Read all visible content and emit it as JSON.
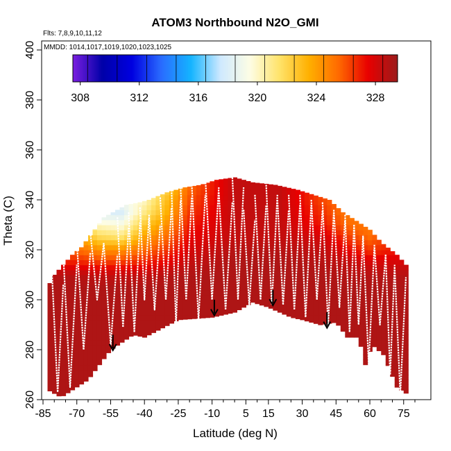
{
  "chart_data": {
    "type": "heatmap",
    "title": "ATOM3 Northbound N2O_GMI",
    "xlabel": "Latitude (deg N)",
    "ylabel": "Theta (C)",
    "xlim": [
      -85,
      80
    ],
    "ylim": [
      260,
      400
    ],
    "x_ticks": [
      -85,
      -70,
      -55,
      -40,
      -25,
      -10,
      5,
      15,
      30,
      45,
      60,
      75
    ],
    "y_ticks": [
      260,
      280,
      300,
      320,
      340,
      360,
      380,
      400
    ],
    "annotations": {
      "flights": "Flts: 7,8,9,10,11,12",
      "dates": "MMDD: 1014,1017,1019,1020,1023,1025"
    },
    "colorbar": {
      "min": 307.5,
      "max": 329.5,
      "tick_values": [
        308,
        312,
        316,
        320,
        324,
        328
      ],
      "tick_labels": [
        "308",
        "312",
        "316",
        "320",
        "324",
        "328"
      ],
      "colors": [
        "#7b1fe0",
        "#0000a8",
        "#0000e0",
        "#2a6cff",
        "#14b4ff",
        "#cfe9ff",
        "#fdfde4",
        "#ffe36a",
        "#ffb000",
        "#ff6a00",
        "#e80000",
        "#9b1c1c"
      ]
    },
    "field": {
      "lower_boundary": [
        [
          -83,
          264
        ],
        [
          -77,
          261
        ],
        [
          -65,
          268
        ],
        [
          -55,
          280
        ],
        [
          -45,
          286
        ],
        [
          -40,
          285
        ],
        [
          -25,
          292
        ],
        [
          -10,
          293
        ],
        [
          0,
          295
        ],
        [
          8,
          299
        ],
        [
          15,
          297
        ],
        [
          25,
          293
        ],
        [
          30,
          292
        ],
        [
          38,
          290
        ],
        [
          45,
          291
        ],
        [
          50,
          285
        ],
        [
          55,
          285
        ],
        [
          58,
          274
        ],
        [
          61,
          282
        ],
        [
          66,
          278
        ],
        [
          72,
          265
        ],
        [
          77,
          262
        ]
      ],
      "upper_boundary": [
        [
          -83,
          305
        ],
        [
          -80,
          310
        ],
        [
          -72,
          318
        ],
        [
          -68,
          321
        ],
        [
          -63,
          327
        ],
        [
          -58,
          333
        ],
        [
          -52,
          336
        ],
        [
          -48,
          338
        ],
        [
          -42,
          339
        ],
        [
          -38,
          340
        ],
        [
          -30,
          343
        ],
        [
          -22,
          345
        ],
        [
          -15,
          346
        ],
        [
          -8,
          348
        ],
        [
          0,
          349
        ],
        [
          8,
          347
        ],
        [
          18,
          346
        ],
        [
          28,
          344
        ],
        [
          35,
          342
        ],
        [
          42,
          340
        ],
        [
          48,
          335
        ],
        [
          55,
          331
        ],
        [
          60,
          328
        ],
        [
          65,
          323
        ],
        [
          72,
          318
        ],
        [
          76,
          314
        ],
        [
          77,
          310
        ]
      ],
      "theta_levels": [
        305,
        310,
        315,
        320,
        325,
        330,
        335,
        340,
        345,
        350
      ],
      "n2o_profile": [
        {
          "lat": -80,
          "values": [
            329,
            328.8,
            327,
            325.5,
            324,
            323,
            322,
            321,
            321,
            321
          ]
        },
        {
          "lat": -70,
          "values": [
            329,
            328.8,
            327,
            325.5,
            324,
            323,
            322,
            321,
            321,
            321
          ]
        },
        {
          "lat": -60,
          "values": [
            329,
            328.5,
            326.5,
            324.5,
            322,
            320,
            318,
            316,
            316,
            316
          ]
        },
        {
          "lat": -50,
          "values": [
            329,
            328.5,
            326.5,
            324.5,
            321.5,
            319.5,
            318,
            319,
            319,
            319
          ]
        },
        {
          "lat": -40,
          "values": [
            329,
            328.5,
            327,
            325.5,
            324,
            322.5,
            321,
            320,
            320,
            320
          ]
        },
        {
          "lat": -30,
          "values": [
            329,
            328.8,
            327.5,
            326.5,
            325.5,
            324.5,
            323.5,
            323,
            322,
            322
          ]
        },
        {
          "lat": -20,
          "values": [
            329,
            329,
            328.5,
            328,
            327.5,
            327,
            326.5,
            326,
            325.5,
            325.5
          ]
        },
        {
          "lat": 0,
          "values": [
            329,
            329,
            329,
            328.8,
            328.5,
            328.5,
            328.5,
            328.5,
            328.5,
            328.5
          ]
        },
        {
          "lat": 20,
          "values": [
            329,
            329,
            329,
            328.8,
            328.5,
            328.5,
            328.5,
            328.5,
            328.5,
            328.5
          ]
        },
        {
          "lat": 40,
          "values": [
            329,
            329,
            328.8,
            328.5,
            328,
            327,
            326.5,
            326,
            326,
            326
          ]
        },
        {
          "lat": 50,
          "values": [
            329,
            328.8,
            328.5,
            327.5,
            326.5,
            325.5,
            325,
            325,
            325,
            325
          ]
        },
        {
          "lat": 60,
          "values": [
            329,
            328.8,
            328,
            326.5,
            325.5,
            325,
            325,
            325,
            325,
            325
          ]
        },
        {
          "lat": 70,
          "values": [
            329,
            328.8,
            328,
            327,
            326.5,
            326,
            326,
            326,
            326,
            326
          ]
        },
        {
          "lat": 78,
          "values": [
            329,
            328.8,
            328,
            327,
            326.5,
            326,
            326,
            326,
            326,
            326
          ]
        }
      ]
    },
    "flight_tracks": [
      {
        "lat_start": -81,
        "lat_end": -76,
        "theta_low": 263,
        "theta_high": 310
      },
      {
        "lat_start": -76,
        "lat_end": -70,
        "theta_low": 265,
        "theta_high": 318
      },
      {
        "lat_start": -70,
        "lat_end": -64,
        "theta_low": 280,
        "theta_high": 323
      },
      {
        "lat_start": -64,
        "lat_end": -58,
        "theta_low": 300,
        "theta_high": 327
      },
      {
        "lat_start": -58,
        "lat_end": -52,
        "theta_low": 282,
        "theta_high": 322
      },
      {
        "lat_start": -52,
        "lat_end": -47,
        "theta_low": 289,
        "theta_high": 333
      },
      {
        "lat_start": -47,
        "lat_end": -42,
        "theta_low": 287,
        "theta_high": 335
      },
      {
        "lat_start": -42,
        "lat_end": -38,
        "theta_low": 300,
        "theta_high": 337
      },
      {
        "lat_start": -38,
        "lat_end": -33,
        "theta_low": 296,
        "theta_high": 334
      },
      {
        "lat_start": -33,
        "lat_end": -28,
        "theta_low": 300,
        "theta_high": 341
      },
      {
        "lat_start": -28,
        "lat_end": -24,
        "theta_low": 290,
        "theta_high": 344
      },
      {
        "lat_start": -24,
        "lat_end": -19,
        "theta_low": 300,
        "theta_high": 345
      },
      {
        "lat_start": -19,
        "lat_end": -13,
        "theta_low": 292,
        "theta_high": 346
      },
      {
        "lat_start": -13,
        "lat_end": -7,
        "theta_low": 300,
        "theta_high": 349
      },
      {
        "lat_start": -7,
        "lat_end": -1,
        "theta_low": 296,
        "theta_high": 343
      },
      {
        "lat_start": -1,
        "lat_end": 4,
        "theta_low": 300,
        "theta_high": 349
      },
      {
        "lat_start": 4,
        "lat_end": 9,
        "theta_low": 298,
        "theta_high": 336
      },
      {
        "lat_start": 9,
        "lat_end": 14,
        "theta_low": 300,
        "theta_high": 342
      },
      {
        "lat_start": 14,
        "lat_end": 19,
        "theta_low": 298,
        "theta_high": 346
      },
      {
        "lat_start": 19,
        "lat_end": 24,
        "theta_low": 298,
        "theta_high": 340
      },
      {
        "lat_start": 24,
        "lat_end": 29,
        "theta_low": 296,
        "theta_high": 342
      },
      {
        "lat_start": 29,
        "lat_end": 34,
        "theta_low": 293,
        "theta_high": 342
      },
      {
        "lat_start": 34,
        "lat_end": 39,
        "theta_low": 300,
        "theta_high": 340
      },
      {
        "lat_start": 39,
        "lat_end": 44,
        "theta_low": 290,
        "theta_high": 339
      },
      {
        "lat_start": 44,
        "lat_end": 49,
        "theta_low": 297,
        "theta_high": 336
      },
      {
        "lat_start": 49,
        "lat_end": 53,
        "theta_low": 287,
        "theta_high": 334
      },
      {
        "lat_start": 53,
        "lat_end": 57,
        "theta_low": 290,
        "theta_high": 330
      },
      {
        "lat_start": 57,
        "lat_end": 62,
        "theta_low": 274,
        "theta_high": 325
      },
      {
        "lat_start": 62,
        "lat_end": 67,
        "theta_low": 290,
        "theta_high": 322
      },
      {
        "lat_start": 67,
        "lat_end": 71,
        "theta_low": 270,
        "theta_high": 318
      },
      {
        "lat_start": 71,
        "lat_end": 76,
        "theta_low": 262,
        "theta_high": 313
      }
    ],
    "tropopause_arrows": [
      {
        "lat": -54,
        "theta_from": 286,
        "theta_to": 280
      },
      {
        "lat": -9,
        "theta_from": 300,
        "theta_to": 294
      },
      {
        "lat": 17,
        "theta_from": 304,
        "theta_to": 298
      },
      {
        "lat": 41,
        "theta_from": 295,
        "theta_to": 289
      }
    ]
  }
}
